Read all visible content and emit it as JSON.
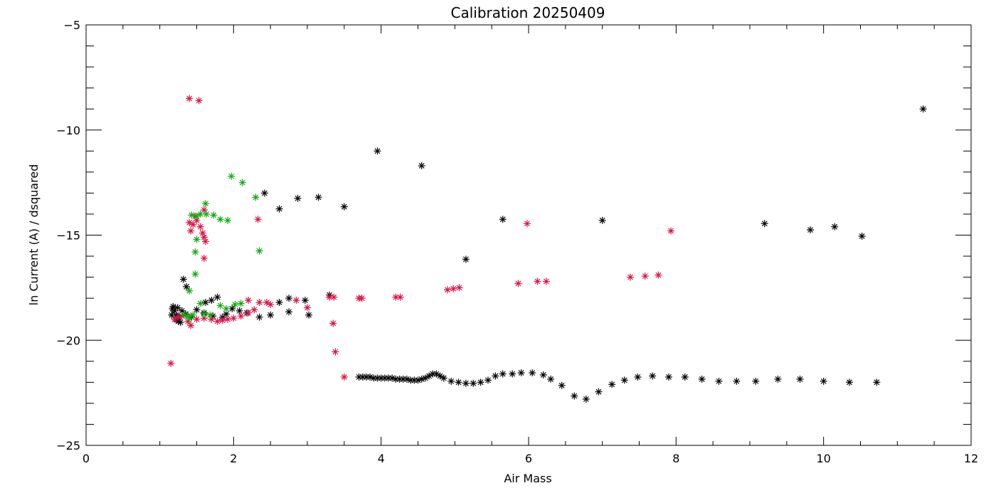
{
  "chart_data": {
    "type": "scatter",
    "title": "Calibration 20250409",
    "xlabel": "Air Mass",
    "ylabel": "ln Current (A) / dsquared",
    "xlim": [
      0,
      12
    ],
    "ylim": [
      -25,
      -5
    ],
    "x_ticks": [
      0,
      2,
      4,
      6,
      8,
      10,
      12
    ],
    "y_ticks": [
      -25,
      -20,
      -15,
      -10,
      -5
    ],
    "x_tick_labels": [
      "0",
      "2",
      "4",
      "6",
      "8",
      "10",
      "12"
    ],
    "y_tick_labels": [
      "−25",
      "−20",
      "−15",
      "−10",
      "−5"
    ],
    "grid": false,
    "marker": "asterisk",
    "series": [
      {
        "color": "#000000",
        "points": [
          [
            11.35,
            -9.0
          ],
          [
            3.95,
            -11.0
          ],
          [
            4.55,
            -11.7
          ],
          [
            2.42,
            -13.0
          ],
          [
            2.87,
            -13.25
          ],
          [
            3.15,
            -13.2
          ],
          [
            2.62,
            -13.75
          ],
          [
            3.5,
            -13.65
          ],
          [
            5.65,
            -14.25
          ],
          [
            7.0,
            -14.3
          ],
          [
            9.2,
            -14.45
          ],
          [
            9.82,
            -14.75
          ],
          [
            10.15,
            -14.6
          ],
          [
            10.52,
            -15.05
          ],
          [
            5.15,
            -16.15
          ],
          [
            1.32,
            -17.1
          ],
          [
            1.36,
            -17.45
          ],
          [
            1.78,
            -17.95
          ],
          [
            1.7,
            -18.1
          ],
          [
            1.62,
            -18.2
          ],
          [
            3.3,
            -17.85
          ],
          [
            2.75,
            -18.0
          ],
          [
            2.97,
            -18.1
          ],
          [
            2.62,
            -18.2
          ],
          [
            1.5,
            -18.55
          ],
          [
            1.3,
            -18.6
          ],
          [
            1.35,
            -18.75
          ],
          [
            1.43,
            -18.9
          ],
          [
            1.6,
            -18.7
          ],
          [
            1.72,
            -18.85
          ],
          [
            1.85,
            -18.9
          ],
          [
            1.9,
            -18.75
          ],
          [
            1.98,
            -18.5
          ],
          [
            2.08,
            -18.6
          ],
          [
            2.18,
            -18.7
          ],
          [
            2.35,
            -18.9
          ],
          [
            2.5,
            -18.8
          ],
          [
            2.75,
            -18.65
          ],
          [
            3.02,
            -18.8
          ],
          [
            1.18,
            -18.4
          ],
          [
            1.2,
            -18.6
          ],
          [
            1.22,
            -18.8
          ],
          [
            1.22,
            -19.0
          ],
          [
            1.25,
            -19.1
          ],
          [
            1.28,
            -19.15
          ],
          [
            1.17,
            -18.5
          ],
          [
            1.16,
            -18.8
          ],
          [
            1.24,
            -18.45
          ],
          [
            1.26,
            -18.9
          ],
          [
            3.7,
            -21.75
          ],
          [
            3.75,
            -21.75
          ],
          [
            3.8,
            -21.75
          ],
          [
            3.85,
            -21.75
          ],
          [
            3.9,
            -21.8
          ],
          [
            3.95,
            -21.8
          ],
          [
            4.0,
            -21.8
          ],
          [
            4.05,
            -21.8
          ],
          [
            4.1,
            -21.8
          ],
          [
            4.15,
            -21.8
          ],
          [
            4.2,
            -21.85
          ],
          [
            4.25,
            -21.85
          ],
          [
            4.3,
            -21.85
          ],
          [
            4.35,
            -21.85
          ],
          [
            4.4,
            -21.9
          ],
          [
            4.45,
            -21.9
          ],
          [
            4.5,
            -21.9
          ],
          [
            4.55,
            -21.85
          ],
          [
            4.6,
            -21.8
          ],
          [
            4.65,
            -21.7
          ],
          [
            4.7,
            -21.6
          ],
          [
            4.75,
            -21.6
          ],
          [
            4.8,
            -21.7
          ],
          [
            4.85,
            -21.8
          ],
          [
            4.95,
            -21.95
          ],
          [
            5.05,
            -22.0
          ],
          [
            5.15,
            -22.05
          ],
          [
            5.25,
            -22.05
          ],
          [
            5.35,
            -22.0
          ],
          [
            5.45,
            -21.9
          ],
          [
            5.55,
            -21.7
          ],
          [
            5.65,
            -21.6
          ],
          [
            5.78,
            -21.6
          ],
          [
            5.9,
            -21.55
          ],
          [
            6.05,
            -21.55
          ],
          [
            6.2,
            -21.65
          ],
          [
            6.3,
            -21.85
          ],
          [
            6.45,
            -22.15
          ],
          [
            6.62,
            -22.65
          ],
          [
            6.78,
            -22.8
          ],
          [
            6.95,
            -22.45
          ],
          [
            7.13,
            -22.1
          ],
          [
            7.3,
            -21.9
          ],
          [
            7.48,
            -21.75
          ],
          [
            7.68,
            -21.7
          ],
          [
            7.9,
            -21.75
          ],
          [
            8.12,
            -21.75
          ],
          [
            8.35,
            -21.85
          ],
          [
            8.58,
            -21.95
          ],
          [
            8.82,
            -21.95
          ],
          [
            9.08,
            -21.95
          ],
          [
            9.38,
            -21.85
          ],
          [
            9.68,
            -21.85
          ],
          [
            10.0,
            -21.95
          ],
          [
            10.35,
            -22.0
          ],
          [
            10.72,
            -22.0
          ]
        ]
      },
      {
        "color": "#dd1144",
        "points": [
          [
            1.4,
            -8.5
          ],
          [
            1.53,
            -8.6
          ],
          [
            2.33,
            -14.25
          ],
          [
            5.98,
            -14.45
          ],
          [
            7.93,
            -14.8
          ],
          [
            1.4,
            -14.4
          ],
          [
            1.45,
            -14.5
          ],
          [
            1.5,
            -14.3
          ],
          [
            1.55,
            -14.6
          ],
          [
            1.58,
            -14.9
          ],
          [
            1.6,
            -15.1
          ],
          [
            1.62,
            -15.3
          ],
          [
            1.48,
            -14.1
          ],
          [
            1.42,
            -14.8
          ],
          [
            1.6,
            -13.8
          ],
          [
            1.6,
            -16.1
          ],
          [
            7.38,
            -17.0
          ],
          [
            7.58,
            -16.95
          ],
          [
            7.76,
            -16.9
          ],
          [
            5.86,
            -17.3
          ],
          [
            6.12,
            -17.2
          ],
          [
            6.24,
            -17.2
          ],
          [
            4.9,
            -17.6
          ],
          [
            4.98,
            -17.55
          ],
          [
            5.06,
            -17.5
          ],
          [
            3.3,
            -17.95
          ],
          [
            3.36,
            -17.95
          ],
          [
            3.7,
            -18.0
          ],
          [
            3.74,
            -18.0
          ],
          [
            4.2,
            -17.95
          ],
          [
            4.26,
            -17.95
          ],
          [
            2.2,
            -18.1
          ],
          [
            2.35,
            -18.2
          ],
          [
            2.45,
            -18.2
          ],
          [
            2.5,
            -18.3
          ],
          [
            2.85,
            -18.1
          ],
          [
            3.0,
            -18.45
          ],
          [
            3.35,
            -19.2
          ],
          [
            3.38,
            -20.55
          ],
          [
            3.5,
            -21.75
          ],
          [
            1.15,
            -21.1
          ],
          [
            1.38,
            -19.1
          ],
          [
            1.42,
            -19.3
          ],
          [
            1.5,
            -19.0
          ],
          [
            1.6,
            -18.95
          ],
          [
            1.7,
            -19.0
          ],
          [
            1.78,
            -19.1
          ],
          [
            1.85,
            -19.05
          ],
          [
            1.92,
            -19.0
          ],
          [
            2.0,
            -18.95
          ],
          [
            2.1,
            -18.85
          ],
          [
            2.2,
            -18.7
          ],
          [
            2.28,
            -18.55
          ],
          [
            1.2,
            -19.0
          ],
          [
            1.25,
            -18.9
          ],
          [
            1.3,
            -18.85
          ]
        ]
      },
      {
        "color": "#11aa11",
        "points": [
          [
            1.97,
            -12.2
          ],
          [
            2.12,
            -12.5
          ],
          [
            2.3,
            -13.2
          ],
          [
            1.62,
            -13.5
          ],
          [
            1.55,
            -14.0
          ],
          [
            1.43,
            -14.05
          ],
          [
            1.5,
            -14.1
          ],
          [
            1.63,
            -14.0
          ],
          [
            1.73,
            -14.05
          ],
          [
            1.82,
            -14.25
          ],
          [
            1.92,
            -14.3
          ],
          [
            1.5,
            -15.2
          ],
          [
            1.48,
            -15.8
          ],
          [
            2.35,
            -15.75
          ],
          [
            1.48,
            -16.85
          ],
          [
            1.4,
            -17.65
          ],
          [
            1.55,
            -18.25
          ],
          [
            1.82,
            -18.35
          ],
          [
            1.9,
            -18.5
          ],
          [
            2.02,
            -18.3
          ],
          [
            2.1,
            -18.25
          ],
          [
            1.6,
            -18.75
          ],
          [
            1.68,
            -18.8
          ],
          [
            1.45,
            -18.8
          ],
          [
            1.38,
            -18.85
          ],
          [
            1.4,
            -18.95
          ],
          [
            1.33,
            -18.8
          ]
        ]
      }
    ]
  }
}
